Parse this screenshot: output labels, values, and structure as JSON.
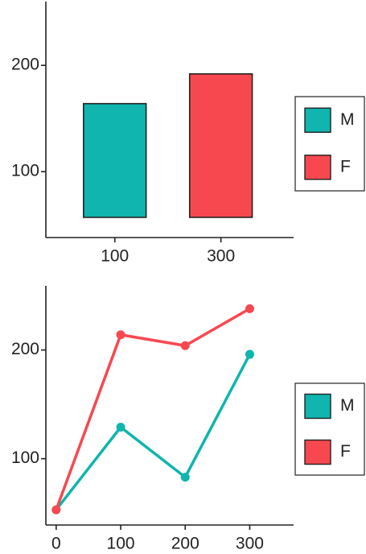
{
  "chart_data": [
    {
      "type": "bar",
      "xlim": [
        -30,
        437
      ],
      "xticks": [
        100,
        300
      ],
      "ylim": [
        38,
        260
      ],
      "yticks": [
        100,
        200
      ],
      "series": [
        {
          "name": "M",
          "color": "#0fb5ae",
          "x": [
            100
          ],
          "bottoms": [
            57
          ],
          "values": [
            164
          ]
        },
        {
          "name": "F",
          "color": "#f8484f",
          "x": [
            300
          ],
          "bottoms": [
            57
          ],
          "values": [
            192
          ]
        }
      ]
    },
    {
      "type": "line",
      "xlim": [
        -16,
        368
      ],
      "xticks": [
        0,
        100,
        200,
        300
      ],
      "ylim": [
        39,
        259
      ],
      "yticks": [
        100,
        200
      ],
      "series": [
        {
          "name": "M",
          "color": "#0fb5ae",
          "x": [
            0,
            100,
            200,
            300
          ],
          "values": [
            53,
            129,
            83,
            196
          ]
        },
        {
          "name": "F",
          "color": "#f8484f",
          "x": [
            0,
            100,
            200,
            300
          ],
          "values": [
            53,
            214,
            204,
            238
          ]
        }
      ]
    }
  ]
}
